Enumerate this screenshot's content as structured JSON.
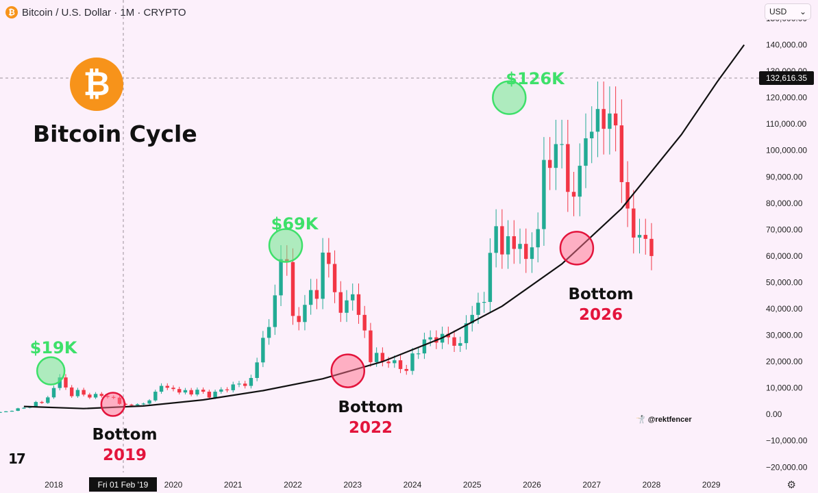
{
  "header": {
    "symbol_icon": "bitcoin-icon",
    "label": "Bitcoin / U.S. Dollar · 1M · CRYPTO"
  },
  "currency": {
    "label": "USD",
    "icon": "chevron-down-icon"
  },
  "branding": {
    "logo_icon": "bitcoin-logo-icon",
    "title": "Bitcoin Cycle"
  },
  "crosshair": {
    "price_label": "132,616.35",
    "date_label": "Fri 01 Feb '19"
  },
  "watermark": {
    "icon": "fencer-icon",
    "text": "@rektfencer"
  },
  "tv_logo": {
    "icon": "tradingview-logo-icon",
    "text": "17"
  },
  "settings": {
    "icon": "gear-icon"
  },
  "annotations": {
    "peaks": [
      {
        "label": "$19K",
        "x": 2017.95,
        "y": 16500
      },
      {
        "label": "$69K",
        "x": 2021.88,
        "y": 64000
      },
      {
        "label": "$126K",
        "x": 2025.62,
        "y": 120000
      }
    ],
    "bottoms": [
      {
        "word": "Bottom",
        "year": "2019",
        "x": 2018.99,
        "y": 3800
      },
      {
        "word": "Bottom",
        "year": "2022",
        "x": 2022.92,
        "y": 16500
      },
      {
        "word": "Bottom",
        "year": "2026",
        "x": 2026.75,
        "y": 63000
      }
    ]
  },
  "colors": {
    "up": "#22ab94",
    "down": "#f23645",
    "background": "#fcf0fb",
    "peak": "#3ee06a",
    "bottom": "#e3143c"
  },
  "chart_data": {
    "type": "candlestick",
    "title": "Bitcoin / U.S. Dollar · 1M · CRYPTO",
    "xlabel": "",
    "ylabel": "",
    "x_ticks": [
      "2018",
      "2020",
      "2021",
      "2022",
      "2023",
      "2024",
      "2025",
      "2026",
      "2027",
      "2028",
      "2029"
    ],
    "y_ticks": [
      "150,000.00",
      "140,000.00",
      "130,000.00",
      "120,000.00",
      "110,000.00",
      "100,000.00",
      "90,000.00",
      "80,000.00",
      "70,000.00",
      "60,000.00",
      "50,000.00",
      "40,000.00",
      "30,000.00",
      "20,000.00",
      "10,000.00",
      "0.00",
      "−10,000.00",
      "−20,000.00"
    ],
    "xlim": [
      2017.1,
      2029.8
    ],
    "ylim": [
      -22000,
      157000
    ],
    "grid": false,
    "support_curve": {
      "description": "power-law floor",
      "points": [
        [
          2017.5,
          3000
        ],
        [
          2018.5,
          2200
        ],
        [
          2019.5,
          3200
        ],
        [
          2020.5,
          5500
        ],
        [
          2021.5,
          9000
        ],
        [
          2022.5,
          13500
        ],
        [
          2023.5,
          20000
        ],
        [
          2024.5,
          29000
        ],
        [
          2025.5,
          41000
        ],
        [
          2026.5,
          57000
        ],
        [
          2027.5,
          78000
        ],
        [
          2028.5,
          106000
        ],
        [
          2029.1,
          126000
        ],
        [
          2029.55,
          140000
        ]
      ]
    },
    "monthly_closes": [
      [
        2017.1,
        900
      ],
      [
        2017.2,
        1150
      ],
      [
        2017.3,
        1350
      ],
      [
        2017.4,
        2300
      ],
      [
        2017.5,
        2500
      ],
      [
        2017.6,
        2900
      ],
      [
        2017.7,
        4700
      ],
      [
        2017.8,
        4350
      ],
      [
        2017.9,
        6450
      ],
      [
        2018.0,
        10000
      ],
      [
        2018.1,
        14000
      ],
      [
        2018.2,
        10200
      ],
      [
        2018.3,
        6900
      ],
      [
        2018.4,
        9250
      ],
      [
        2018.5,
        7500
      ],
      [
        2018.6,
        6400
      ],
      [
        2018.7,
        7750
      ],
      [
        2018.8,
        7000
      ],
      [
        2018.9,
        6600
      ],
      [
        2019.0,
        6350
      ],
      [
        2019.1,
        4000
      ],
      [
        2019.2,
        3700
      ],
      [
        2019.3,
        3450
      ],
      [
        2019.4,
        3850
      ],
      [
        2019.5,
        4100
      ],
      [
        2019.6,
        5300
      ],
      [
        2019.7,
        8600
      ],
      [
        2019.8,
        10800
      ],
      [
        2019.9,
        10100
      ],
      [
        2020.0,
        9600
      ],
      [
        2020.1,
        8300
      ],
      [
        2020.2,
        9200
      ],
      [
        2020.3,
        7550
      ],
      [
        2020.4,
        9350
      ],
      [
        2020.5,
        8600
      ],
      [
        2020.6,
        6400
      ],
      [
        2020.7,
        8600
      ],
      [
        2020.8,
        9450
      ],
      [
        2020.9,
        9150
      ],
      [
        2021.0,
        11350
      ],
      [
        2021.1,
        11650
      ],
      [
        2021.2,
        10800
      ],
      [
        2021.3,
        13800
      ],
      [
        2021.4,
        19700
      ],
      [
        2021.5,
        29000
      ],
      [
        2021.6,
        33100
      ],
      [
        2021.7,
        45100
      ],
      [
        2021.8,
        58800
      ],
      [
        2021.9,
        57700
      ],
      [
        2022.0,
        37300
      ],
      [
        2022.1,
        35000
      ],
      [
        2022.2,
        41500
      ],
      [
        2022.3,
        47100
      ],
      [
        2022.4,
        43800
      ],
      [
        2022.5,
        61300
      ],
      [
        2022.6,
        57000
      ],
      [
        2022.7,
        46300
      ],
      [
        2022.8,
        38500
      ],
      [
        2022.9,
        43200
      ],
      [
        2023.0,
        45500
      ],
      [
        2023.1,
        37700
      ],
      [
        2023.2,
        31800
      ],
      [
        2023.3,
        19800
      ],
      [
        2023.4,
        23300
      ],
      [
        2023.5,
        20000
      ],
      [
        2023.6,
        19400
      ],
      [
        2023.7,
        20500
      ],
      [
        2023.8,
        17200
      ],
      [
        2023.9,
        16500
      ],
      [
        2024.0,
        23100
      ],
      [
        2024.1,
        23100
      ],
      [
        2024.2,
        28400
      ],
      [
        2024.3,
        29200
      ],
      [
        2024.4,
        27200
      ],
      [
        2024.5,
        30500
      ],
      [
        2024.6,
        29200
      ],
      [
        2024.7,
        26000
      ],
      [
        2024.8,
        27000
      ],
      [
        2024.9,
        34500
      ],
      [
        2025.0,
        37700
      ],
      [
        2025.1,
        42300
      ],
      [
        2025.2,
        42600
      ],
      [
        2025.3,
        61200
      ],
      [
        2025.4,
        71300
      ],
      [
        2025.5,
        60600
      ],
      [
        2025.6,
        67500
      ],
      [
        2025.7,
        62700
      ],
      [
        2025.8,
        64600
      ],
      [
        2025.9,
        58900
      ],
      [
        2026.0,
        63300
      ],
      [
        2026.1,
        70200
      ],
      [
        2026.2,
        96400
      ],
      [
        2026.3,
        93400
      ],
      [
        2026.4,
        102400
      ],
      [
        2026.5,
        102400
      ],
      [
        2026.6,
        84300
      ],
      [
        2026.7,
        82500
      ],
      [
        2026.8,
        94200
      ],
      [
        2026.9,
        104600
      ],
      [
        2027.0,
        107100
      ],
      [
        2027.1,
        115700
      ],
      [
        2027.2,
        108200
      ],
      [
        2027.3,
        114000
      ],
      [
        2027.4,
        109500
      ],
      [
        2027.5,
        88000
      ],
      [
        2027.6,
        78000
      ],
      [
        2027.7,
        67000
      ],
      [
        2027.8,
        68000
      ],
      [
        2027.9,
        66500
      ],
      [
        2028.0,
        60000
      ]
    ]
  }
}
